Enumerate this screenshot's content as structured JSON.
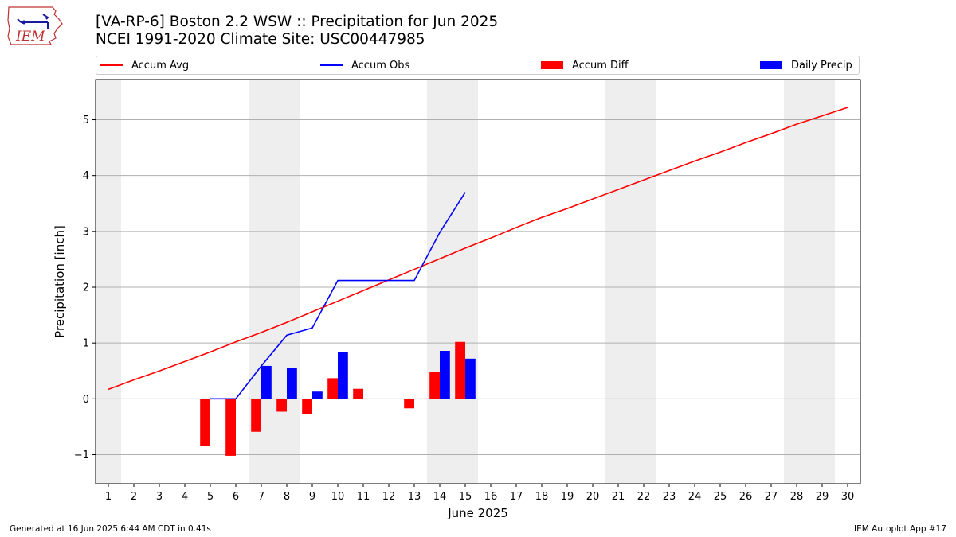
{
  "header": {
    "title_line1": "[VA-RP-6] Boston 2.2 WSW :: Precipitation for Jun 2025",
    "title_line2": "NCEI 1991-2020 Climate Site: USC00447985"
  },
  "logo": {
    "text": "IEM",
    "icon": "iowa-state-outline-icon"
  },
  "footer": {
    "left": "Generated at 16 Jun 2025 6:44 AM CDT in 0.41s",
    "right": "IEM Autoplot App #17"
  },
  "colors": {
    "accum_avg": "#ff0000",
    "accum_obs": "#0000ff",
    "accum_diff": "#ff0000",
    "daily_precip": "#0000ff",
    "weekend_shade": "#eeeeee",
    "grid": "#b0b0b0"
  },
  "chart_data": {
    "type": "bar",
    "title": "[VA-RP-6] Boston 2.2 WSW :: Precipitation for Jun 2025",
    "subtitle": "NCEI 1991-2020 Climate Site: USC00447985",
    "xlabel": "June 2025",
    "ylabel": "Precipitation [inch]",
    "xlim": [
      0.5,
      30.5
    ],
    "ylim": [
      -1.52,
      5.72
    ],
    "x_ticks": [
      1,
      2,
      3,
      4,
      5,
      6,
      7,
      8,
      9,
      10,
      11,
      12,
      13,
      14,
      15,
      16,
      17,
      18,
      19,
      20,
      21,
      22,
      23,
      24,
      25,
      26,
      27,
      28,
      29,
      30
    ],
    "y_ticks": [
      -1,
      0,
      1,
      2,
      3,
      4,
      5
    ],
    "y_tick_labels": [
      "−1",
      "0",
      "1",
      "2",
      "3",
      "4",
      "5"
    ],
    "grid": "horizontal",
    "legend_position": "top",
    "weekend_shading": [
      [
        0.5,
        1.5
      ],
      [
        6.5,
        8.5
      ],
      [
        13.5,
        15.5
      ],
      [
        20.5,
        22.5
      ],
      [
        27.5,
        29.5
      ]
    ],
    "series": [
      {
        "name": "Accum Avg",
        "kind": "line",
        "x": [
          1,
          2,
          3,
          4,
          5,
          6,
          7,
          8,
          9,
          10,
          11,
          12,
          13,
          14,
          15,
          16,
          17,
          18,
          19,
          20,
          21,
          22,
          23,
          24,
          25,
          26,
          27,
          28,
          29,
          30
        ],
        "values": [
          0.17,
          0.34,
          0.5,
          0.67,
          0.84,
          1.02,
          1.19,
          1.37,
          1.56,
          1.75,
          1.94,
          2.13,
          2.32,
          2.51,
          2.7,
          2.88,
          3.07,
          3.25,
          3.41,
          3.58,
          3.75,
          3.92,
          4.09,
          4.26,
          4.42,
          4.59,
          4.75,
          4.92,
          5.07,
          5.22
        ]
      },
      {
        "name": "Accum Obs",
        "kind": "line",
        "x": [
          5,
          6,
          7,
          8,
          9,
          10,
          11,
          12,
          13,
          14,
          15
        ],
        "values": [
          0.0,
          0.0,
          0.59,
          1.14,
          1.27,
          2.12,
          2.12,
          2.12,
          2.12,
          2.98,
          3.7
        ]
      },
      {
        "name": "Accum Diff",
        "kind": "bar",
        "x": [
          5,
          6,
          7,
          8,
          9,
          10,
          11,
          12,
          13,
          14,
          15
        ],
        "values": [
          -0.84,
          -1.02,
          -0.59,
          -0.23,
          -0.27,
          0.37,
          0.18,
          0,
          -0.17,
          0.48,
          1.02
        ]
      },
      {
        "name": "Daily Precip",
        "kind": "bar",
        "x": [
          5,
          6,
          7,
          8,
          9,
          10,
          11,
          12,
          13,
          14,
          15
        ],
        "values": [
          0,
          0,
          0.59,
          0.55,
          0.13,
          0.84,
          0,
          0,
          0,
          0.86,
          0.72
        ]
      }
    ]
  }
}
